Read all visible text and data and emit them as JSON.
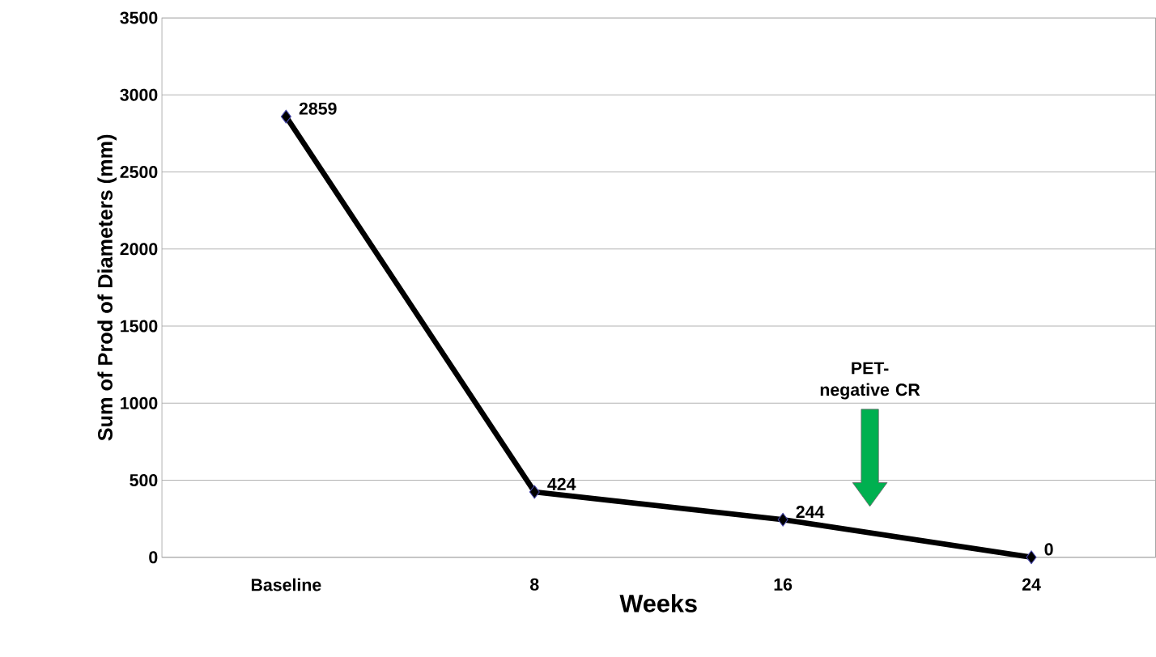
{
  "chart_data": {
    "type": "line",
    "categories": [
      "Baseline",
      "8",
      "16",
      "24"
    ],
    "values": [
      2859,
      424,
      244,
      0
    ],
    "color": "#000000",
    "xlabel": "Weeks",
    "ylabel": "Sum of Prod of Diameters (mm)",
    "ylim": [
      0,
      3500
    ],
    "yticks": [
      0,
      500,
      1000,
      1500,
      2000,
      2500,
      3000,
      3500
    ],
    "grid": "y",
    "marker": "diamond",
    "data_labels": true,
    "annotations": [
      "PET-negative CR"
    ]
  }
}
